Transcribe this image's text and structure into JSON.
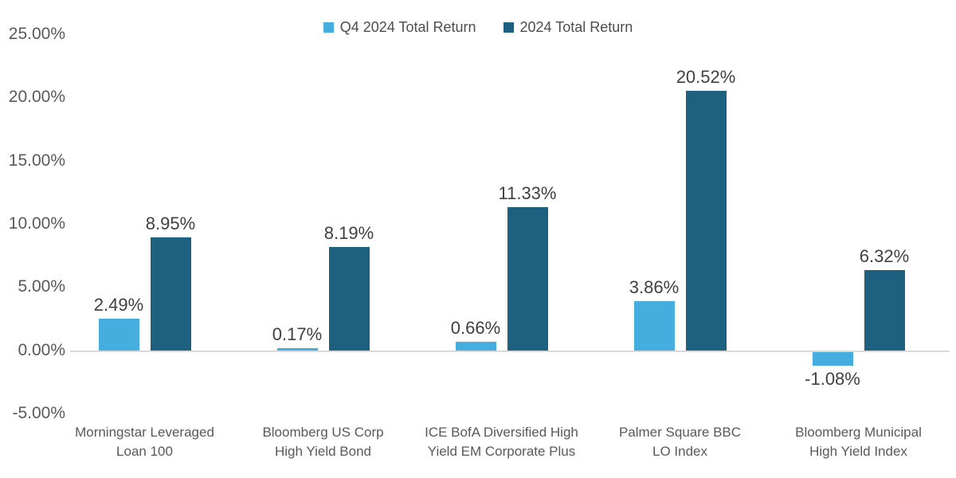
{
  "chart_data": {
    "type": "bar",
    "title": "",
    "xlabel": "",
    "ylabel": "",
    "categories": [
      "Morningstar Leveraged Loan 100",
      "Bloomberg US Corp High Yield Bond",
      "ICE BofA Diversified High Yield EM Corporate Plus",
      "Palmer Square BBC LO Index",
      "Bloomberg Municipal High Yield Index"
    ],
    "category_lines": [
      [
        "Morningstar Leveraged",
        "Loan 100"
      ],
      [
        "Bloomberg US Corp",
        "High Yield Bond"
      ],
      [
        "ICE BofA Diversified High",
        "Yield EM Corporate Plus"
      ],
      [
        "Palmer Square BBC",
        "LO Index"
      ],
      [
        "Bloomberg Municipal",
        "High Yield Index"
      ]
    ],
    "series": [
      {
        "name": "Q4 2024 Total Return",
        "color": "#45AEDF",
        "values": [
          2.49,
          0.17,
          0.66,
          3.86,
          -1.08
        ],
        "data_labels": [
          "2.49%",
          "0.17%",
          "0.66%",
          "3.86%",
          "-1.08%"
        ]
      },
      {
        "name": "2024 Total Return",
        "color": "#1D6080",
        "values": [
          8.95,
          8.19,
          11.33,
          20.52,
          6.32
        ],
        "data_labels": [
          "8.95%",
          "8.19%",
          "11.33%",
          "20.52%",
          "6.32%"
        ]
      }
    ],
    "ylim": [
      -5,
      25
    ],
    "yticks": [
      {
        "value": 25,
        "label": "25.00%"
      },
      {
        "value": 20,
        "label": "20.00%"
      },
      {
        "value": 15,
        "label": "15.00%"
      },
      {
        "value": 10,
        "label": "10.00%"
      },
      {
        "value": 5,
        "label": "5.00%"
      },
      {
        "value": 0,
        "label": "0.00%"
      },
      {
        "value": -5,
        "label": "-5.00%"
      }
    ],
    "grid": "zero-axis-line-only",
    "legend_position": "top-center"
  },
  "colors": {
    "q4_bar": "#45AEDF",
    "year_bar": "#1D6080",
    "axis_text": "#595959",
    "value_text": "#404040",
    "zero_line": "#D9D9D9",
    "background": "#FFFFFF"
  }
}
